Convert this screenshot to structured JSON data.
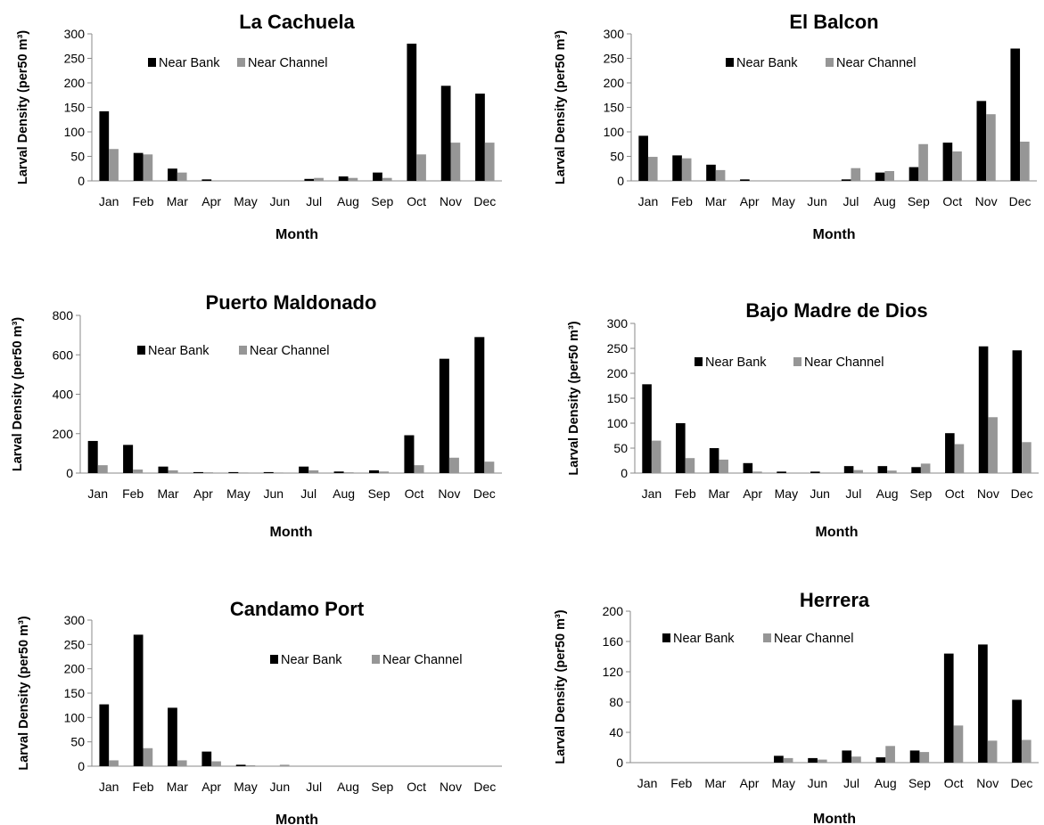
{
  "months": [
    "Jan",
    "Feb",
    "Mar",
    "Apr",
    "May",
    "Jun",
    "Jul",
    "Aug",
    "Sep",
    "Oct",
    "Nov",
    "Dec"
  ],
  "colors": {
    "near_bank": "#000000",
    "near_channel": "#969696",
    "axis": "#888888",
    "text": "#000000"
  },
  "chart_data": [
    {
      "type": "bar",
      "title": "La Cachuela",
      "xlabel": "Month",
      "ylabel": "Larval Density (per50 m³)",
      "categories": [
        "Jan",
        "Feb",
        "Mar",
        "Apr",
        "May",
        "Jun",
        "Jul",
        "Aug",
        "Sep",
        "Oct",
        "Nov",
        "Dec"
      ],
      "ylim": [
        0,
        300
      ],
      "yticks": [
        0,
        50,
        100,
        150,
        200,
        250,
        300
      ],
      "legend": "top-center",
      "series": [
        {
          "name": "Near Bank",
          "values": [
            142,
            57,
            25,
            3,
            0,
            0,
            4,
            9,
            17,
            280,
            194,
            178
          ]
        },
        {
          "name": "Near Channel",
          "values": [
            65,
            54,
            17,
            0,
            0,
            0,
            6,
            6,
            6,
            54,
            78,
            78
          ]
        }
      ]
    },
    {
      "type": "bar",
      "title": "El Balcon",
      "xlabel": "Month",
      "ylabel": "Larval Density (per50 m³)",
      "categories": [
        "Jan",
        "Feb",
        "Mar",
        "Apr",
        "May",
        "Jun",
        "Jul",
        "Aug",
        "Sep",
        "Oct",
        "Nov",
        "Dec"
      ],
      "ylim": [
        0,
        300
      ],
      "yticks": [
        0,
        50,
        100,
        150,
        200,
        250,
        300
      ],
      "legend": "top-center",
      "series": [
        {
          "name": "Near Bank",
          "values": [
            92,
            52,
            33,
            3,
            0,
            0,
            3,
            17,
            28,
            78,
            163,
            270
          ]
        },
        {
          "name": "Near Channel",
          "values": [
            49,
            46,
            22,
            0,
            0,
            0,
            26,
            20,
            75,
            60,
            136,
            80
          ]
        }
      ]
    },
    {
      "type": "bar",
      "title": "Puerto Maldonado",
      "xlabel": "Month",
      "ylabel": "Larval Density (per50 m³)",
      "categories": [
        "Jan",
        "Feb",
        "Mar",
        "Apr",
        "May",
        "Jun",
        "Jul",
        "Aug",
        "Sep",
        "Oct",
        "Nov",
        "Dec"
      ],
      "ylim": [
        0,
        800
      ],
      "yticks": [
        0,
        200,
        400,
        600,
        800
      ],
      "legend": "top-center",
      "series": [
        {
          "name": "Near Bank",
          "values": [
            163,
            143,
            33,
            5,
            5,
            5,
            33,
            8,
            14,
            192,
            580,
            690
          ]
        },
        {
          "name": "Near Channel",
          "values": [
            40,
            18,
            14,
            4,
            3,
            3,
            14,
            4,
            8,
            40,
            78,
            58
          ]
        }
      ]
    },
    {
      "type": "bar",
      "title": "Bajo Madre de Dios",
      "xlabel": "Month",
      "ylabel": "Larval Density (per50 m³)",
      "categories": [
        "Jan",
        "Feb",
        "Mar",
        "Apr",
        "May",
        "Jun",
        "Jul",
        "Aug",
        "Sep",
        "Oct",
        "Nov",
        "Dec"
      ],
      "ylim": [
        0,
        300
      ],
      "yticks": [
        0,
        50,
        100,
        150,
        200,
        250,
        300
      ],
      "legend": "top-center",
      "series": [
        {
          "name": "Near Bank",
          "values": [
            178,
            100,
            50,
            20,
            3,
            3,
            14,
            14,
            12,
            80,
            254,
            246
          ]
        },
        {
          "name": "Near Channel",
          "values": [
            65,
            30,
            27,
            3,
            0,
            0,
            6,
            5,
            19,
            58,
            112,
            62
          ]
        }
      ]
    },
    {
      "type": "bar",
      "title": "Candamo Port",
      "xlabel": "Month",
      "ylabel": "Larval Density (per50 m³)",
      "categories": [
        "Jan",
        "Feb",
        "Mar",
        "Apr",
        "May",
        "Jun",
        "Jul",
        "Aug",
        "Sep",
        "Oct",
        "Nov",
        "Dec"
      ],
      "ylim": [
        0,
        300
      ],
      "yticks": [
        0,
        50,
        100,
        150,
        200,
        250,
        300
      ],
      "legend": "right",
      "series": [
        {
          "name": "Near Bank",
          "values": [
            127,
            270,
            120,
            30,
            3,
            0,
            0,
            0,
            0,
            0,
            0,
            0
          ]
        },
        {
          "name": "Near Channel",
          "values": [
            12,
            37,
            12,
            10,
            2,
            3,
            0,
            0,
            0,
            0,
            0,
            0
          ]
        }
      ]
    },
    {
      "type": "bar",
      "title": "Herrera",
      "xlabel": "Month",
      "ylabel": "Larval Density (per50 m³)",
      "categories": [
        "Jan",
        "Feb",
        "Mar",
        "Apr",
        "May",
        "Jun",
        "Jul",
        "Aug",
        "Sep",
        "Oct",
        "Nov",
        "Dec"
      ],
      "ylim": [
        0,
        200
      ],
      "yticks": [
        0,
        40,
        80,
        120,
        160,
        200
      ],
      "legend": "top-left",
      "series": [
        {
          "name": "Near Bank",
          "values": [
            0,
            0,
            0,
            0,
            9,
            6,
            16,
            7,
            16,
            144,
            156,
            83
          ]
        },
        {
          "name": "Near Channel",
          "values": [
            0,
            0,
            0,
            0,
            6,
            4,
            8,
            22,
            14,
            49,
            29,
            30
          ]
        }
      ]
    }
  ]
}
